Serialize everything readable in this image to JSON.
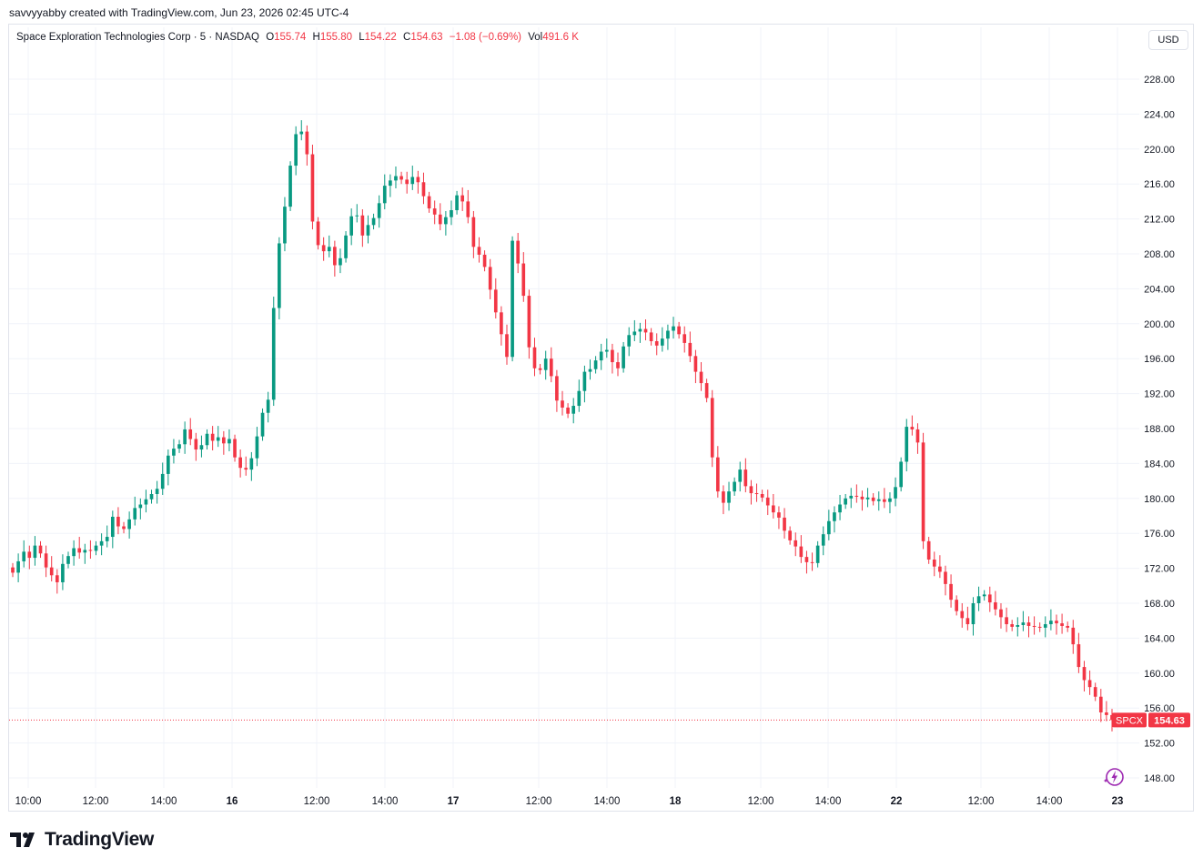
{
  "credit": "savvyyabby created with TradingView.com, Jun 23, 2026 02:45 UTC-4",
  "legend": {
    "name": "Space Exploration Technologies Corp · 5 · NASDAQ",
    "o_label": "O",
    "o": "155.74",
    "h_label": "H",
    "h": "155.80",
    "l_label": "L",
    "l": "154.22",
    "c_label": "C",
    "c": "154.63",
    "change": "−1.08 (−0.69%)",
    "vol_label": "Vol",
    "vol": "491.6 K"
  },
  "currency": "USD",
  "brand": "TradingView",
  "colors": {
    "up": "#089981",
    "down": "#f23645",
    "grid": "#f0f3fa",
    "text": "#131722"
  },
  "chart_data": {
    "type": "candlestick",
    "symbol": "SPCX",
    "last_price": "154.63",
    "y_range": [
      146,
      232
    ],
    "y_ticks": [
      "228.00",
      "224.00",
      "220.00",
      "216.00",
      "212.00",
      "208.00",
      "204.00",
      "200.00",
      "196.00",
      "192.00",
      "188.00",
      "184.00",
      "180.00",
      "176.00",
      "172.00",
      "168.00",
      "164.00",
      "160.00",
      "156.00",
      "152.00",
      "148.00"
    ],
    "x_ticks": [
      "10:00",
      "12:00",
      "14:00",
      "16",
      "12:00",
      "14:00",
      "17",
      "12:00",
      "14:00",
      "18",
      "12:00",
      "14:00",
      "22",
      "12:00",
      "14:00",
      "23"
    ],
    "series_close": [
      171.5,
      172.8,
      173.9,
      173.2,
      174.6,
      173.7,
      172.1,
      171.2,
      170.4,
      172.5,
      173.4,
      174.3,
      173.8,
      174.1,
      174.0,
      174.6,
      175.1,
      175.6,
      177.9,
      176.8,
      176.5,
      177.6,
      178.9,
      179.3,
      179.9,
      180.5,
      181.1,
      182.8,
      184.9,
      185.7,
      186.2,
      187.9,
      186.8,
      185.6,
      186.1,
      187.4,
      186.6,
      187.0,
      186.3,
      186.8,
      184.7,
      183.5,
      183.3,
      184.6,
      187.1,
      189.8,
      191.3,
      201.8,
      209.2,
      213.4,
      218.1,
      221.7,
      222.0,
      219.4,
      211.7,
      209.0,
      208.3,
      208.8,
      206.7,
      207.5,
      210.1,
      212.3,
      212.4,
      210.1,
      211.3,
      212.1,
      213.8,
      215.8,
      216.4,
      216.9,
      216.5,
      216.0,
      216.8,
      216.2,
      214.6,
      213.2,
      212.5,
      211.4,
      212.2,
      213.0,
      214.7,
      214.0,
      212.2,
      208.8,
      207.9,
      206.5,
      203.9,
      201.3,
      198.8,
      196.2,
      209.5,
      206.9,
      203.2,
      197.3,
      194.9,
      194.7,
      196.0,
      194.0,
      191.2,
      190.4,
      189.7,
      190.6,
      192.3,
      194.5,
      194.8,
      195.8,
      196.8,
      197.0,
      195.6,
      194.9,
      197.4,
      198.7,
      199.1,
      199.4,
      199.0,
      198.0,
      197.5,
      198.3,
      199.2,
      199.7,
      198.8,
      197.8,
      196.3,
      194.5,
      193.2,
      191.5,
      184.7,
      180.8,
      179.5,
      180.8,
      181.9,
      183.3,
      181.4,
      180.6,
      180.5,
      180.1,
      179.2,
      178.4,
      177.8,
      176.3,
      175.2,
      174.5,
      173.3,
      172.7,
      172.6,
      174.6,
      175.9,
      177.4,
      178.4,
      179.3,
      180.0,
      180.3,
      180.2,
      179.9,
      180.1,
      179.7,
      179.9,
      179.6,
      180.0,
      181.3,
      184.2,
      188.2,
      187.9,
      186.4,
      175.1,
      173.0,
      172.2,
      171.6,
      170.2,
      168.4,
      167.1,
      166.3,
      165.6,
      168.0,
      168.8,
      169.0,
      168.1,
      167.3,
      166.4,
      165.6,
      165.3,
      165.5,
      165.8,
      165.4,
      165.3,
      165.2,
      165.6,
      166.0,
      165.7,
      165.4,
      165.2,
      163.3,
      160.7,
      159.2,
      158.4,
      157.3,
      155.5,
      155.2,
      154.63
    ]
  }
}
